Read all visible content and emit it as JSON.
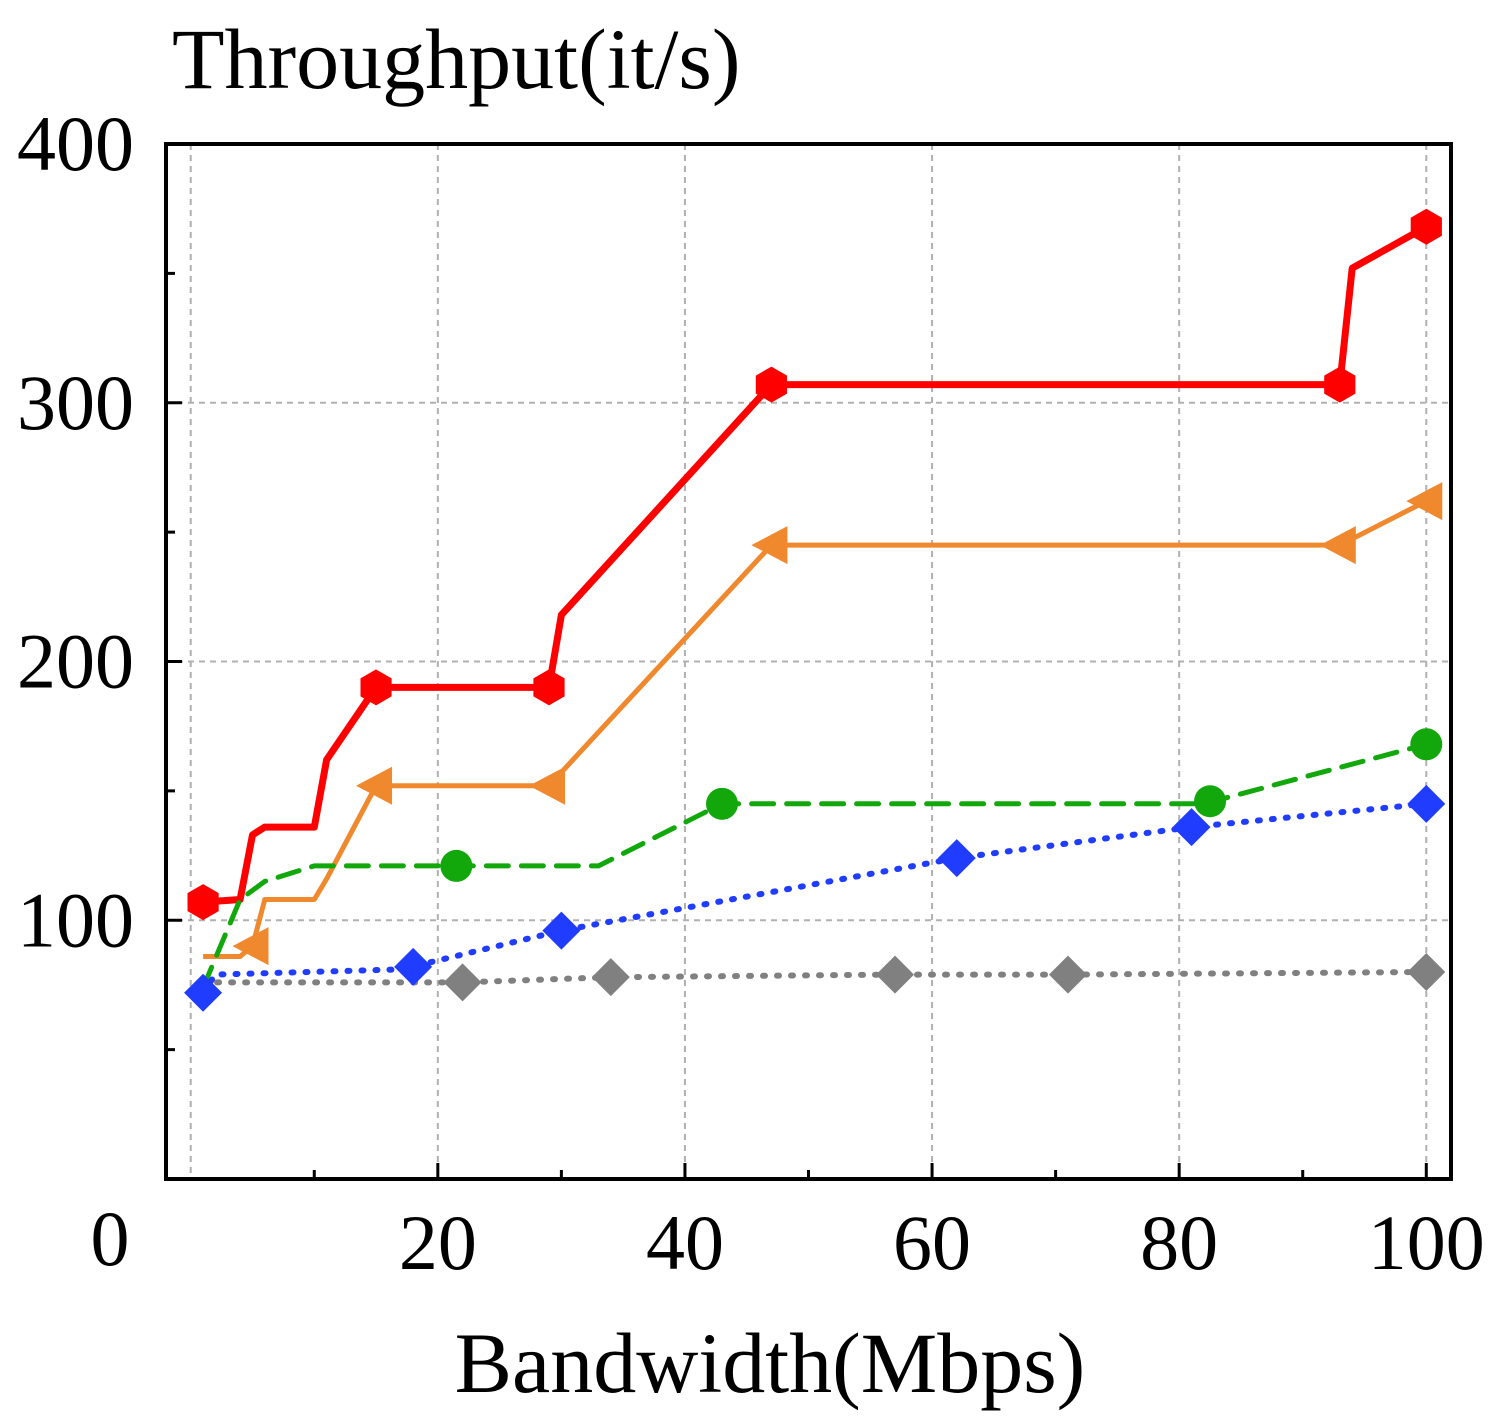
{
  "chart_data": {
    "type": "line",
    "title": "",
    "ylabel": "Throughput(it/s)",
    "xlabel": "Bandwidth(Mbps)",
    "xlim": [
      -2,
      102
    ],
    "ylim": [
      0,
      400
    ],
    "x_ticks": [
      20,
      40,
      60,
      80,
      100
    ],
    "x_tick_labels": [
      "20",
      "40",
      "60",
      "80",
      "100"
    ],
    "x_minor_ticks": [
      10,
      30,
      50,
      70,
      90
    ],
    "y_ticks": [
      100,
      200,
      300,
      400
    ],
    "y_tick_labels": [
      "100",
      "200",
      "300",
      "400"
    ],
    "y_minor_ticks": [
      50,
      150,
      250,
      350
    ],
    "origin_label": "0",
    "grid": true,
    "x_grid": [
      0,
      20,
      40,
      60,
      80,
      100
    ],
    "y_grid": [
      100,
      200,
      300
    ],
    "series": [
      {
        "color": "#ff0000",
        "dash": "solid",
        "width": 7,
        "marker": "hexagon",
        "points": [
          [
            1,
            107
          ],
          [
            4,
            108
          ],
          [
            5,
            133
          ],
          [
            6,
            136
          ],
          [
            10,
            136
          ],
          [
            11,
            162
          ],
          [
            15,
            190
          ],
          [
            29,
            190
          ],
          [
            30,
            218
          ],
          [
            47,
            307
          ],
          [
            93,
            307
          ],
          [
            94,
            352
          ],
          [
            100,
            368
          ]
        ],
        "markers": [
          [
            1,
            107
          ],
          [
            15,
            190
          ],
          [
            29,
            190
          ],
          [
            47,
            307
          ],
          [
            93,
            307
          ],
          [
            100,
            368
          ]
        ]
      },
      {
        "color": "#f0882e",
        "dash": "solid",
        "width": 5,
        "marker": "triangle-left",
        "points": [
          [
            1,
            86
          ],
          [
            4,
            86
          ],
          [
            5,
            90
          ],
          [
            6,
            108
          ],
          [
            10,
            108
          ],
          [
            11,
            116
          ],
          [
            15,
            152
          ],
          [
            29,
            152
          ],
          [
            47,
            245
          ],
          [
            93,
            245
          ],
          [
            100,
            262
          ]
        ],
        "markers": [
          [
            5,
            90
          ],
          [
            15,
            152
          ],
          [
            29,
            152
          ],
          [
            47,
            245
          ],
          [
            93,
            245
          ],
          [
            100,
            262
          ]
        ]
      },
      {
        "color": "#12a80c",
        "dash": "dashed",
        "width": 5,
        "marker": "circle",
        "points": [
          [
            1,
            74
          ],
          [
            4,
            108
          ],
          [
            6,
            115
          ],
          [
            10,
            121
          ],
          [
            21.5,
            121
          ],
          [
            33,
            121
          ],
          [
            43,
            145
          ],
          [
            82,
            145
          ],
          [
            100,
            168
          ]
        ],
        "markers": [
          [
            21.5,
            121
          ],
          [
            43,
            145
          ],
          [
            82.5,
            146
          ],
          [
            100,
            168
          ]
        ]
      },
      {
        "color": "#1f3cff",
        "dash": "dotted",
        "width": 6,
        "marker": "diamond",
        "points": [
          [
            1,
            72
          ],
          [
            2,
            79
          ],
          [
            17,
            81
          ],
          [
            30,
            96
          ],
          [
            62,
            124
          ],
          [
            81,
            136
          ],
          [
            100,
            145
          ]
        ],
        "markers": [
          [
            1,
            72
          ],
          [
            18,
            82
          ],
          [
            30,
            96
          ],
          [
            62,
            124
          ],
          [
            81,
            136
          ],
          [
            100,
            145
          ]
        ]
      },
      {
        "color": "#808080",
        "dash": "dotted",
        "width": 6,
        "marker": "diamond",
        "points": [
          [
            1,
            76
          ],
          [
            22,
            76
          ],
          [
            34,
            78
          ],
          [
            57,
            79
          ],
          [
            71,
            79
          ],
          [
            100,
            80
          ]
        ],
        "markers": [
          [
            22,
            76
          ],
          [
            34,
            78
          ],
          [
            57,
            79
          ],
          [
            71,
            79
          ],
          [
            100,
            80
          ]
        ]
      }
    ]
  }
}
